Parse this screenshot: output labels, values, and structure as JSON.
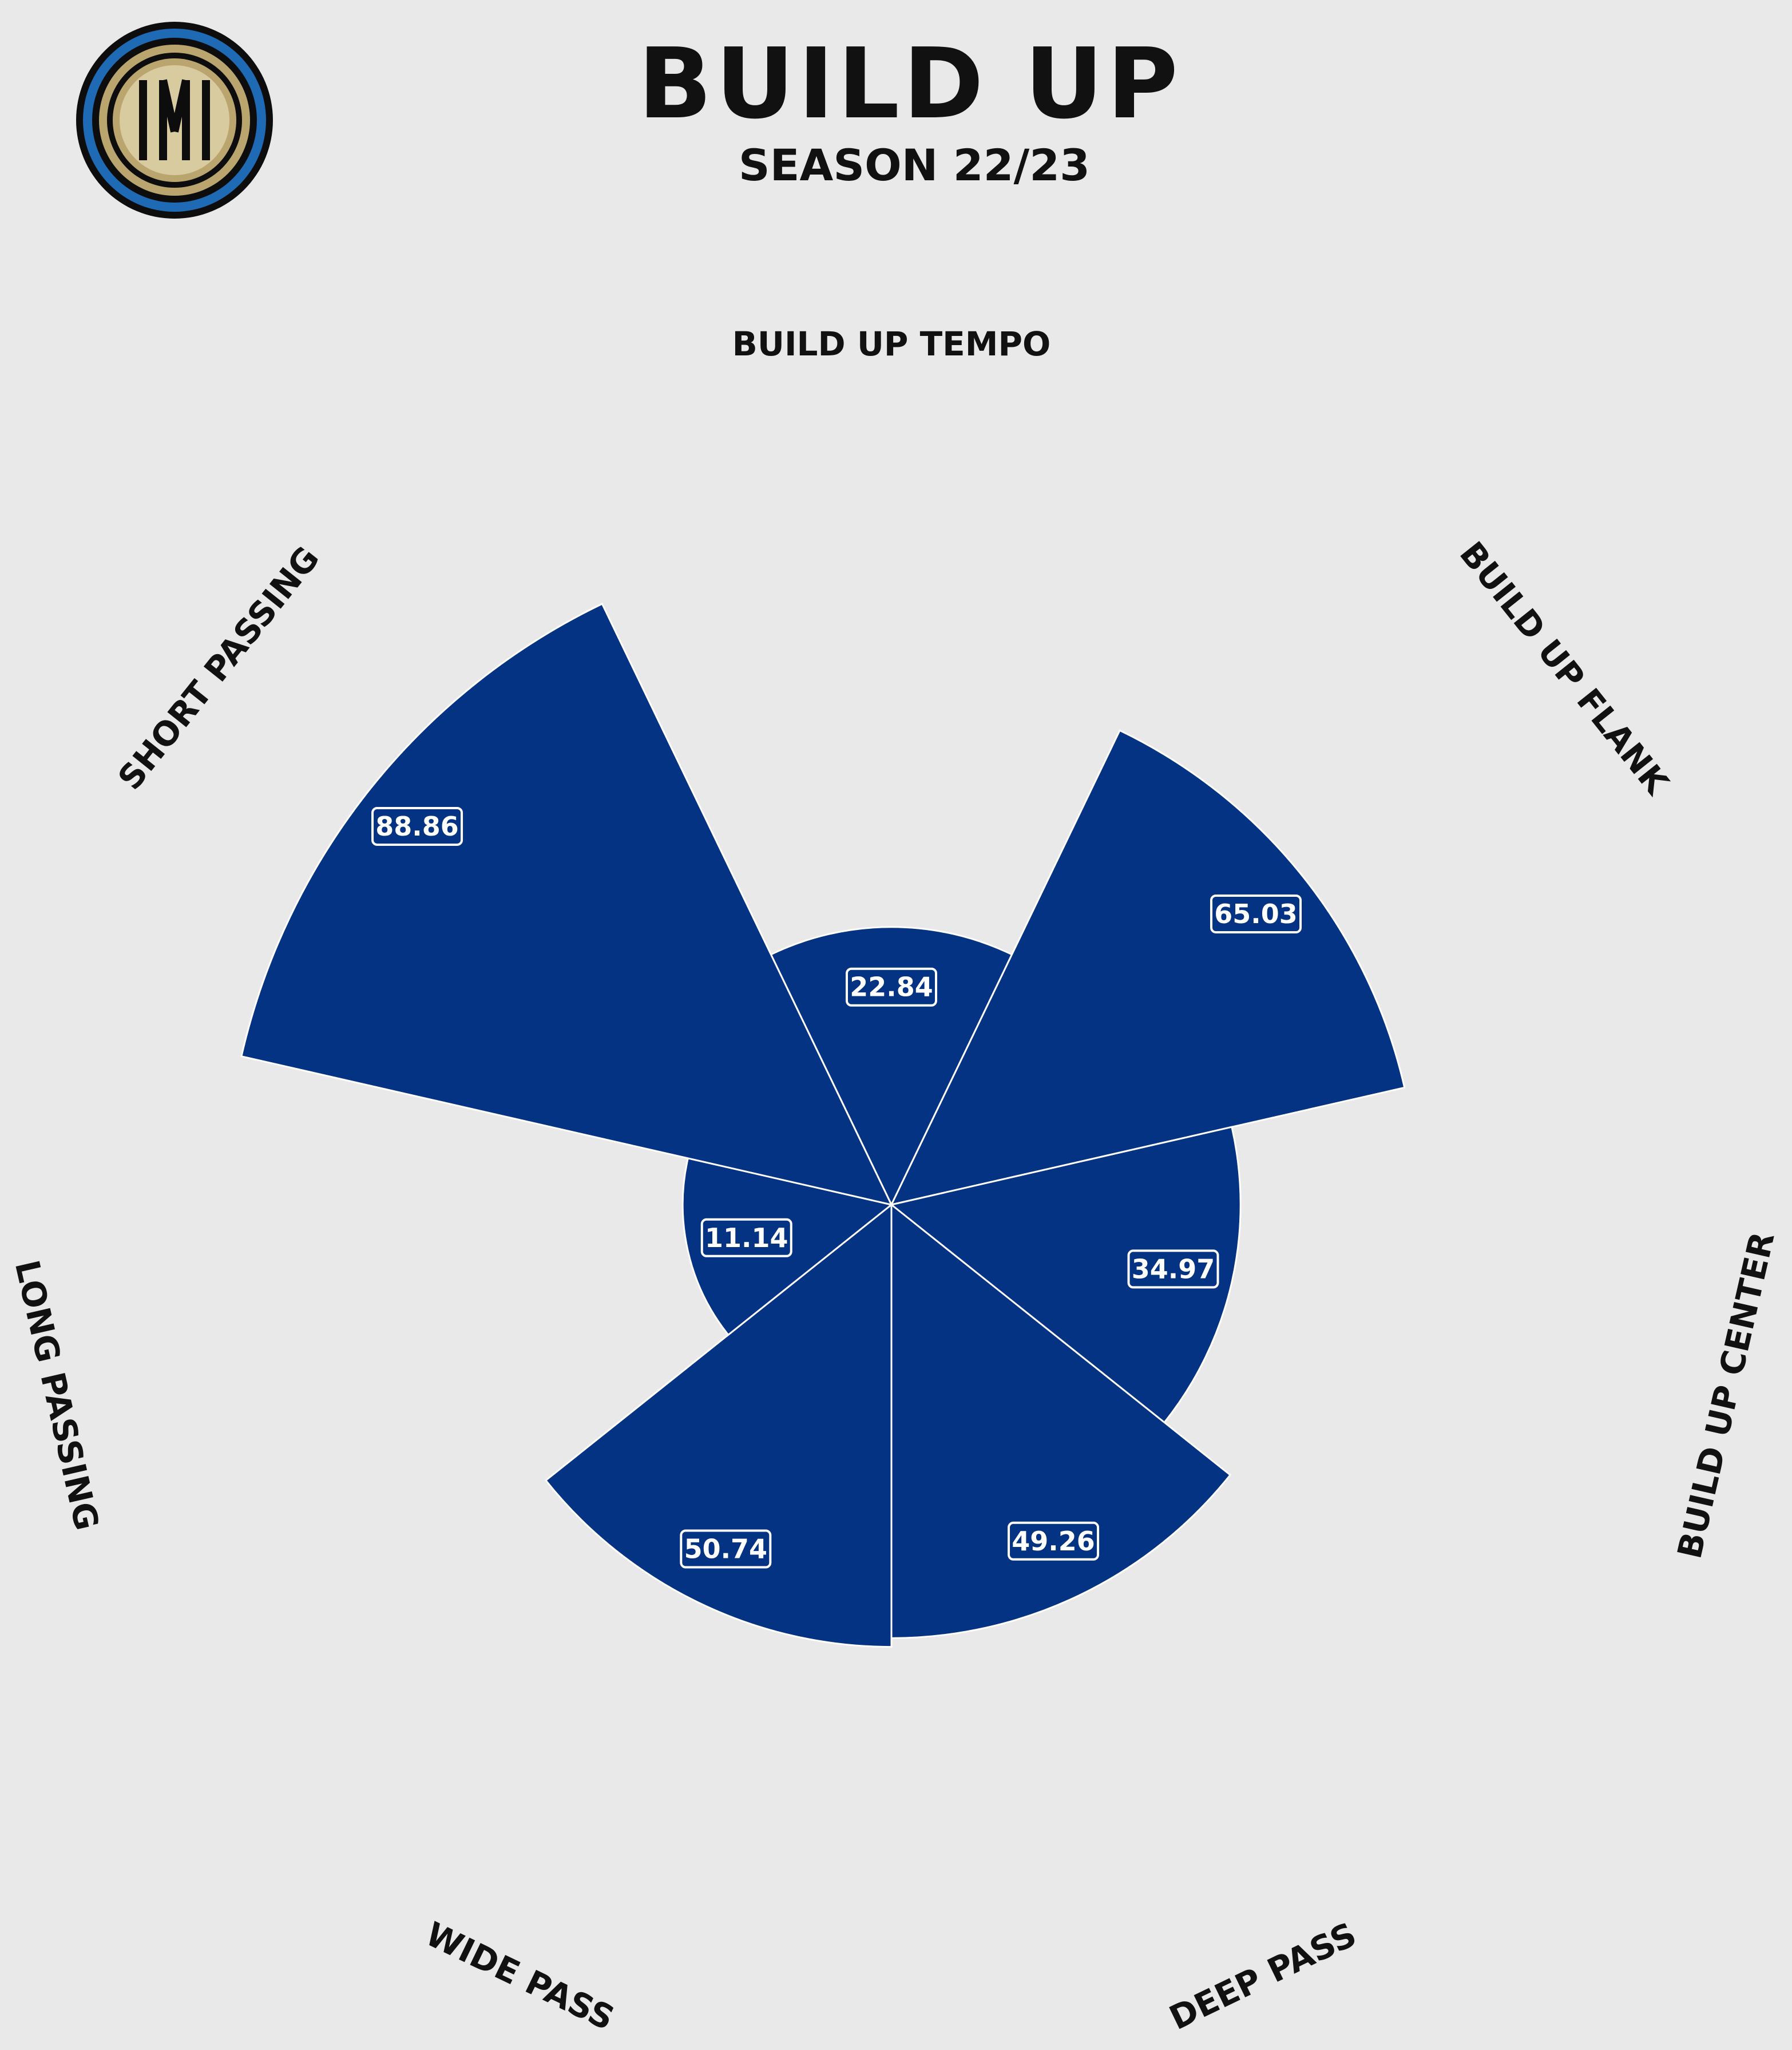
{
  "header": {
    "title": "BUILD UP",
    "subtitle": "SEASON 22/23"
  },
  "logo": {
    "name": "inter-crest",
    "letters": "IM",
    "colors": {
      "outer": "#1f6ab5",
      "ring": "#111111",
      "gold": "#bba56f",
      "inner": "#d9cba0"
    }
  },
  "colors": {
    "bar": "#053383",
    "edge": "#ffffff",
    "background": "#e9e9e9"
  },
  "chart_data": {
    "type": "polar-bar",
    "title": "BUILD UP",
    "subtitle": "SEASON 22/23",
    "categories": [
      "BUILD UP TEMPO",
      "BUILD UP FLANK",
      "BUILD UP CENTER",
      "DEEP PASS",
      "WIDE PASS",
      "LONG PASSING",
      "SHORT PASSING"
    ],
    "values": [
      22.84,
      65.03,
      34.97,
      49.26,
      50.74,
      11.14,
      88.86
    ],
    "value_labels": [
      "22.84",
      "65.03",
      "34.97",
      "49.26",
      "50.74",
      "11.14",
      "88.86"
    ],
    "direction": "clockwise",
    "first_category_position": "top",
    "grid": false
  }
}
